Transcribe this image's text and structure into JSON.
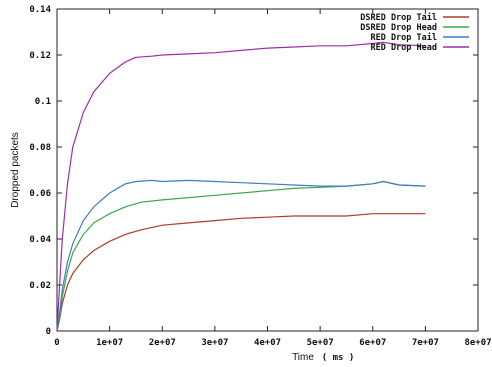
{
  "chart_data": {
    "type": "line",
    "xlabel": "Time",
    "xlabel_unit": "( ms )",
    "ylabel": "Dropped packets",
    "xlim": [
      0,
      80000000
    ],
    "ylim": [
      0,
      0.14
    ],
    "x_ticks": [
      0,
      10000000,
      20000000,
      30000000,
      40000000,
      50000000,
      60000000,
      70000000,
      80000000
    ],
    "x_tick_labels": [
      "0",
      "1e+07",
      "2e+07",
      "3e+07",
      "4e+07",
      "5e+07",
      "6e+07",
      "7e+07",
      "8e+07"
    ],
    "y_ticks": [
      0,
      0.02,
      0.04,
      0.06,
      0.08,
      0.1,
      0.12,
      0.14
    ],
    "y_tick_labels": [
      "0",
      "0.02",
      "0.04",
      "0.06",
      "0.08",
      "0.1",
      "0.12",
      "0.14"
    ],
    "grid": false,
    "legend_position": "top-right",
    "series": [
      {
        "name": "DSRED Drop Tail",
        "color": "#b03a2e",
        "x": [
          0,
          500000,
          1000000,
          2000000,
          3000000,
          5000000,
          7000000,
          10000000,
          13000000,
          16000000,
          20000000,
          25000000,
          30000000,
          35000000,
          40000000,
          45000000,
          50000000,
          55000000,
          60000000,
          65000000,
          70000000
        ],
        "y": [
          0,
          0.005,
          0.012,
          0.02,
          0.025,
          0.031,
          0.035,
          0.039,
          0.042,
          0.044,
          0.046,
          0.047,
          0.048,
          0.049,
          0.0495,
          0.05,
          0.05,
          0.05,
          0.051,
          0.051,
          0.051
        ]
      },
      {
        "name": "DSRED Drop Head",
        "color": "#3aa84a",
        "x": [
          0,
          500000,
          1000000,
          2000000,
          3000000,
          5000000,
          7000000,
          10000000,
          13000000,
          16000000,
          20000000,
          25000000,
          30000000,
          35000000,
          40000000,
          45000000,
          50000000,
          55000000,
          60000000,
          62000000,
          65000000,
          70000000
        ],
        "y": [
          0,
          0.006,
          0.015,
          0.026,
          0.034,
          0.042,
          0.047,
          0.051,
          0.054,
          0.056,
          0.057,
          0.058,
          0.059,
          0.06,
          0.061,
          0.062,
          0.0625,
          0.063,
          0.064,
          0.065,
          0.0635,
          0.063
        ]
      },
      {
        "name": "RED Drop Tail",
        "color": "#3d7fc1",
        "x": [
          0,
          500000,
          1000000,
          2000000,
          3000000,
          5000000,
          7000000,
          10000000,
          13000000,
          15000000,
          18000000,
          20000000,
          25000000,
          30000000,
          35000000,
          40000000,
          45000000,
          50000000,
          55000000,
          60000000,
          62000000,
          65000000,
          70000000
        ],
        "y": [
          0,
          0.008,
          0.018,
          0.03,
          0.038,
          0.048,
          0.054,
          0.06,
          0.064,
          0.065,
          0.0655,
          0.065,
          0.0655,
          0.065,
          0.0645,
          0.064,
          0.0635,
          0.063,
          0.063,
          0.064,
          0.065,
          0.0635,
          0.063
        ]
      },
      {
        "name": "RED Drop Head",
        "color": "#9b2fa8",
        "x": [
          0,
          500000,
          1000000,
          2000000,
          3000000,
          5000000,
          7000000,
          10000000,
          13000000,
          15000000,
          18000000,
          20000000,
          25000000,
          30000000,
          35000000,
          40000000,
          45000000,
          50000000,
          55000000,
          60000000,
          62000000,
          65000000,
          70000000
        ],
        "y": [
          0,
          0.02,
          0.04,
          0.064,
          0.08,
          0.095,
          0.104,
          0.112,
          0.117,
          0.119,
          0.1195,
          0.12,
          0.1205,
          0.121,
          0.122,
          0.123,
          0.1235,
          0.124,
          0.124,
          0.125,
          0.1255,
          0.1245,
          0.124
        ]
      }
    ]
  }
}
